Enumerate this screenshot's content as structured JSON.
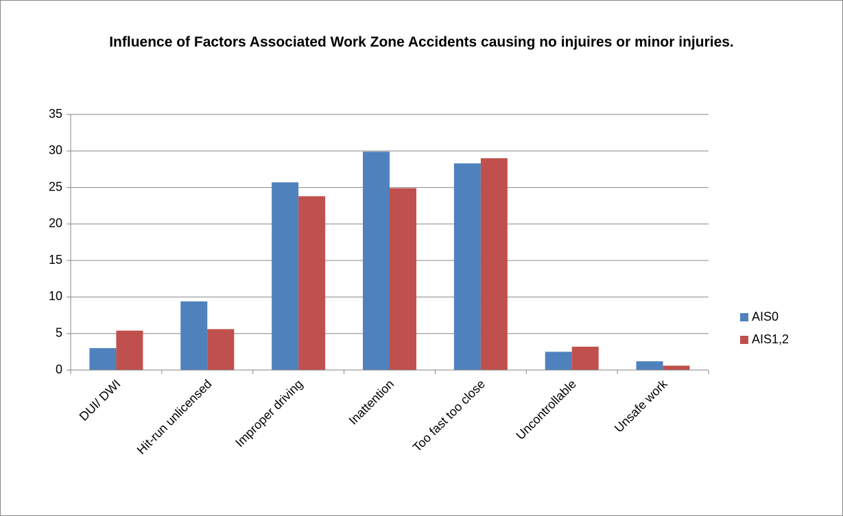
{
  "chart_data": {
    "type": "bar",
    "title": "Influence of Factors Associated Work Zone Accidents causing no injuires or minor injuries.",
    "categories": [
      "DUI/ DWI",
      "Hit-run unlicensed",
      "Improper driving",
      "Inattention",
      "Too fast too close",
      "Uncontrollable",
      "Unsafe work"
    ],
    "series": [
      {
        "name": "AIS0",
        "color": "#4f81bd",
        "values": [
          3.0,
          9.4,
          25.7,
          29.9,
          28.3,
          2.5,
          1.2
        ]
      },
      {
        "name": "AIS1,2",
        "color": "#c0504d",
        "values": [
          5.4,
          5.6,
          23.8,
          24.9,
          29.0,
          3.2,
          0.6
        ]
      }
    ],
    "ylim": [
      0,
      35
    ],
    "yticks": [
      0,
      5,
      10,
      15,
      20,
      25,
      30,
      35
    ],
    "grid": true,
    "legend": "right"
  }
}
